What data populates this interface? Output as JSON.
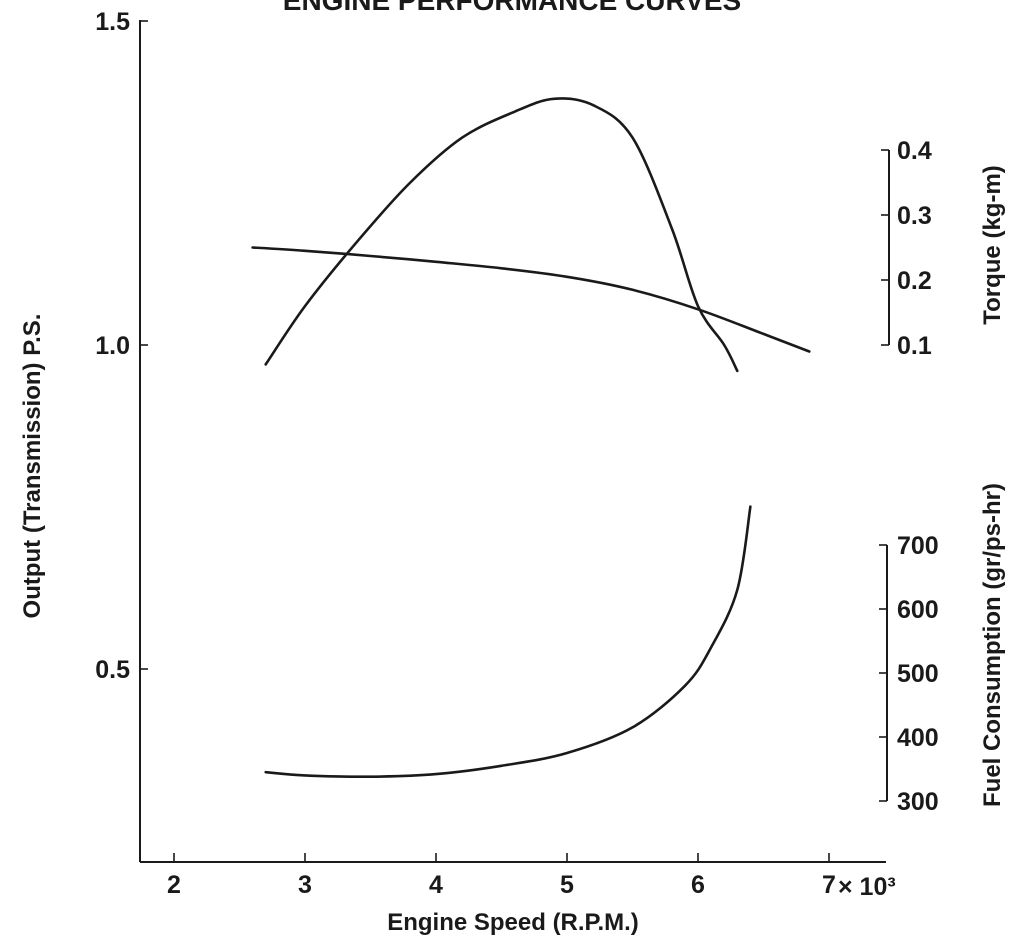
{
  "chart_data": {
    "type": "line",
    "title": "ENGINE PERFORMANCE CURVES",
    "xlabel": "Engine Speed (R.P.M.)",
    "x_multiplier_label": "× 10³",
    "xlim": [
      1.5,
      7.0
    ],
    "xticks": [
      "2",
      "3",
      "4",
      "5",
      "6",
      "7"
    ],
    "grid": false,
    "axes": {
      "output": {
        "label": "Output (Transmission) P.S.",
        "side": "left",
        "ylim": [
          0.2,
          1.5
        ],
        "ticks": [
          "0.5",
          "1.0",
          "1.5"
        ]
      },
      "torque": {
        "label": "Torque (kg-m)",
        "side": "right",
        "ticks": [
          "0.1",
          "0.2",
          "0.3",
          "0.4"
        ]
      },
      "fuel": {
        "label": "Fuel Consumption (gr/ps-hr)",
        "side": "right",
        "ticks": [
          "300",
          "400",
          "500",
          "600",
          "700"
        ]
      }
    },
    "series": [
      {
        "axis": "output",
        "x": [
          2.7,
          3.0,
          3.4,
          3.8,
          4.2,
          4.6,
          4.9,
          5.2,
          5.5,
          5.8,
          6.0,
          6.2,
          6.3
        ],
        "values": [
          0.97,
          1.06,
          1.16,
          1.25,
          1.32,
          1.36,
          1.38,
          1.37,
          1.32,
          1.18,
          1.06,
          1.0,
          0.96
        ]
      },
      {
        "axis": "torque",
        "x": [
          2.6,
          3.0,
          3.5,
          4.0,
          4.5,
          5.0,
          5.5,
          6.0,
          6.5,
          6.85
        ],
        "values": [
          0.25,
          0.245,
          0.237,
          0.228,
          0.218,
          0.205,
          0.185,
          0.155,
          0.117,
          0.09
        ]
      },
      {
        "axis": "fuel",
        "x": [
          2.7,
          3.0,
          3.5,
          4.0,
          4.5,
          5.0,
          5.5,
          5.9,
          6.1,
          6.3,
          6.4
        ],
        "values": [
          345,
          340,
          338,
          342,
          355,
          375,
          415,
          480,
          540,
          630,
          760
        ]
      }
    ]
  }
}
